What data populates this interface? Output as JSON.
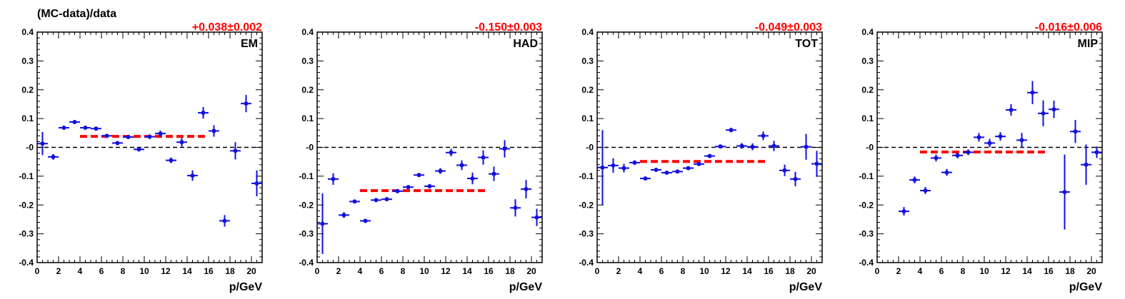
{
  "figure": {
    "ylabel": "(MC-data)/data",
    "xlabel": "p/GeV"
  },
  "colors": {
    "points": "#1010e0",
    "fit": "#ff0000",
    "reference": "#000000"
  },
  "chart_data": [
    {
      "type": "scatter",
      "panel_label": "EM",
      "fit_label": "+0.038±0.002",
      "fit": {
        "value": 0.038,
        "x_range": [
          4,
          16
        ]
      },
      "reference_line": 0,
      "xlim": [
        0,
        21
      ],
      "ylim": [
        -0.4,
        0.4
      ],
      "xticks": [
        "0",
        "2",
        "4",
        "6",
        "8",
        "10",
        "12",
        "14",
        "16",
        "18",
        "20"
      ],
      "yticks": [
        "-0.4",
        "-0.3",
        "-0.2",
        "-0.1",
        "-0",
        "0.1",
        "0.2",
        "0.3",
        "0.4"
      ],
      "points": [
        {
          "x": 0.5,
          "y": 0.013,
          "err": 0.04
        },
        {
          "x": 1.5,
          "y": -0.033,
          "err": 0.01
        },
        {
          "x": 2.5,
          "y": 0.068,
          "err": 0.005
        },
        {
          "x": 3.5,
          "y": 0.088,
          "err": 0.005
        },
        {
          "x": 4.5,
          "y": 0.068,
          "err": 0.005
        },
        {
          "x": 5.5,
          "y": 0.065,
          "err": 0.005
        },
        {
          "x": 6.5,
          "y": 0.04,
          "err": 0.005
        },
        {
          "x": 7.5,
          "y": 0.015,
          "err": 0.006
        },
        {
          "x": 8.5,
          "y": 0.036,
          "err": 0.005
        },
        {
          "x": 9.5,
          "y": -0.007,
          "err": 0.006
        },
        {
          "x": 10.5,
          "y": 0.037,
          "err": 0.008
        },
        {
          "x": 11.5,
          "y": 0.048,
          "err": 0.01
        },
        {
          "x": 12.5,
          "y": -0.045,
          "err": 0.01
        },
        {
          "x": 13.5,
          "y": 0.018,
          "err": 0.015
        },
        {
          "x": 14.5,
          "y": -0.098,
          "err": 0.018
        },
        {
          "x": 15.5,
          "y": 0.12,
          "err": 0.02
        },
        {
          "x": 16.5,
          "y": 0.057,
          "err": 0.02
        },
        {
          "x": 17.5,
          "y": -0.255,
          "err": 0.02
        },
        {
          "x": 18.5,
          "y": -0.012,
          "err": 0.03
        },
        {
          "x": 19.5,
          "y": 0.152,
          "err": 0.03
        },
        {
          "x": 20.5,
          "y": -0.125,
          "err": 0.045
        }
      ]
    },
    {
      "type": "scatter",
      "panel_label": "HAD",
      "fit_label": "-0.150±0.003",
      "fit": {
        "value": -0.15,
        "x_range": [
          4,
          16
        ]
      },
      "reference_line": 0,
      "xlim": [
        0,
        21
      ],
      "ylim": [
        -0.4,
        0.4
      ],
      "xticks": [
        "0",
        "2",
        "4",
        "6",
        "8",
        "10",
        "12",
        "14",
        "16",
        "18",
        "20"
      ],
      "yticks": [
        "-0.4",
        "-0.3",
        "-0.2",
        "-0.1",
        "-0",
        "0.1",
        "0.2",
        "0.3",
        "0.4"
      ],
      "points": [
        {
          "x": 0.5,
          "y": -0.265,
          "err": 0.105
        },
        {
          "x": 1.5,
          "y": -0.11,
          "err": 0.02
        },
        {
          "x": 2.5,
          "y": -0.235,
          "err": 0.01
        },
        {
          "x": 3.5,
          "y": -0.188,
          "err": 0.006
        },
        {
          "x": 4.5,
          "y": -0.255,
          "err": 0.006
        },
        {
          "x": 5.5,
          "y": -0.183,
          "err": 0.005
        },
        {
          "x": 6.5,
          "y": -0.18,
          "err": 0.005
        },
        {
          "x": 7.5,
          "y": -0.152,
          "err": 0.006
        },
        {
          "x": 8.5,
          "y": -0.138,
          "err": 0.006
        },
        {
          "x": 9.5,
          "y": -0.096,
          "err": 0.007
        },
        {
          "x": 10.5,
          "y": -0.135,
          "err": 0.008
        },
        {
          "x": 11.5,
          "y": -0.082,
          "err": 0.01
        },
        {
          "x": 12.5,
          "y": -0.018,
          "err": 0.013
        },
        {
          "x": 13.5,
          "y": -0.062,
          "err": 0.017
        },
        {
          "x": 14.5,
          "y": -0.108,
          "err": 0.02
        },
        {
          "x": 15.5,
          "y": -0.035,
          "err": 0.025
        },
        {
          "x": 16.5,
          "y": -0.092,
          "err": 0.025
        },
        {
          "x": 17.5,
          "y": -0.005,
          "err": 0.03
        },
        {
          "x": 18.5,
          "y": -0.21,
          "err": 0.03
        },
        {
          "x": 19.5,
          "y": -0.145,
          "err": 0.032
        },
        {
          "x": 20.5,
          "y": -0.243,
          "err": 0.03
        }
      ]
    },
    {
      "type": "scatter",
      "panel_label": "TOT",
      "fit_label": "-0.049±0.003",
      "fit": {
        "value": -0.049,
        "x_range": [
          4,
          16
        ]
      },
      "reference_line": 0,
      "xlim": [
        0,
        21
      ],
      "ylim": [
        -0.4,
        0.4
      ],
      "xticks": [
        "0",
        "2",
        "4",
        "6",
        "8",
        "10",
        "12",
        "14",
        "16",
        "18",
        "20"
      ],
      "yticks": [
        "-0.4",
        "-0.3",
        "-0.2",
        "-0.1",
        "-0",
        "0.1",
        "0.2",
        "0.3",
        "0.4"
      ],
      "points": [
        {
          "x": 0.5,
          "y": -0.07,
          "err": 0.13
        },
        {
          "x": 1.5,
          "y": -0.063,
          "err": 0.025
        },
        {
          "x": 2.5,
          "y": -0.072,
          "err": 0.015
        },
        {
          "x": 3.5,
          "y": -0.053,
          "err": 0.008
        },
        {
          "x": 4.5,
          "y": -0.108,
          "err": 0.006
        },
        {
          "x": 5.5,
          "y": -0.078,
          "err": 0.005
        },
        {
          "x": 6.5,
          "y": -0.088,
          "err": 0.005
        },
        {
          "x": 7.5,
          "y": -0.084,
          "err": 0.005
        },
        {
          "x": 8.5,
          "y": -0.072,
          "err": 0.005
        },
        {
          "x": 9.5,
          "y": -0.058,
          "err": 0.006
        },
        {
          "x": 10.5,
          "y": -0.03,
          "err": 0.006
        },
        {
          "x": 11.5,
          "y": 0.003,
          "err": 0.007
        },
        {
          "x": 12.5,
          "y": 0.06,
          "err": 0.008
        },
        {
          "x": 13.5,
          "y": 0.005,
          "err": 0.01
        },
        {
          "x": 14.5,
          "y": 0.002,
          "err": 0.012
        },
        {
          "x": 15.5,
          "y": 0.04,
          "err": 0.015
        },
        {
          "x": 16.5,
          "y": 0.005,
          "err": 0.018
        },
        {
          "x": 17.5,
          "y": -0.08,
          "err": 0.02
        },
        {
          "x": 18.5,
          "y": -0.11,
          "err": 0.025
        },
        {
          "x": 19.5,
          "y": 0.002,
          "err": 0.045
        },
        {
          "x": 20.5,
          "y": -0.057,
          "err": 0.045
        }
      ]
    },
    {
      "type": "scatter",
      "panel_label": "MIP",
      "fit_label": "-0.016±0.006",
      "fit": {
        "value": -0.016,
        "x_range": [
          4,
          16
        ]
      },
      "reference_line": 0,
      "xlim": [
        0,
        21
      ],
      "ylim": [
        -0.4,
        0.4
      ],
      "xticks": [
        "0",
        "2",
        "4",
        "6",
        "8",
        "10",
        "12",
        "14",
        "16",
        "18",
        "20"
      ],
      "yticks": [
        "-0.4",
        "-0.3",
        "-0.2",
        "-0.1",
        "-0",
        "0.1",
        "0.2",
        "0.3",
        "0.4"
      ],
      "points": [
        {
          "x": 2.5,
          "y": -0.222,
          "err": 0.015
        },
        {
          "x": 3.5,
          "y": -0.113,
          "err": 0.012
        },
        {
          "x": 4.5,
          "y": -0.15,
          "err": 0.012
        },
        {
          "x": 5.5,
          "y": -0.037,
          "err": 0.012
        },
        {
          "x": 6.5,
          "y": -0.087,
          "err": 0.012
        },
        {
          "x": 7.5,
          "y": -0.028,
          "err": 0.01
        },
        {
          "x": 8.5,
          "y": -0.017,
          "err": 0.01
        },
        {
          "x": 9.5,
          "y": 0.035,
          "err": 0.015
        },
        {
          "x": 10.5,
          "y": 0.015,
          "err": 0.015
        },
        {
          "x": 11.5,
          "y": 0.038,
          "err": 0.015
        },
        {
          "x": 12.5,
          "y": 0.13,
          "err": 0.02
        },
        {
          "x": 13.5,
          "y": 0.025,
          "err": 0.025
        },
        {
          "x": 14.5,
          "y": 0.19,
          "err": 0.04
        },
        {
          "x": 15.5,
          "y": 0.118,
          "err": 0.045
        },
        {
          "x": 16.5,
          "y": 0.132,
          "err": 0.03
        },
        {
          "x": 17.5,
          "y": -0.155,
          "err": 0.13
        },
        {
          "x": 18.5,
          "y": 0.055,
          "err": 0.04
        },
        {
          "x": 19.5,
          "y": -0.06,
          "err": 0.07
        },
        {
          "x": 20.5,
          "y": -0.017,
          "err": 0.02
        }
      ]
    }
  ]
}
